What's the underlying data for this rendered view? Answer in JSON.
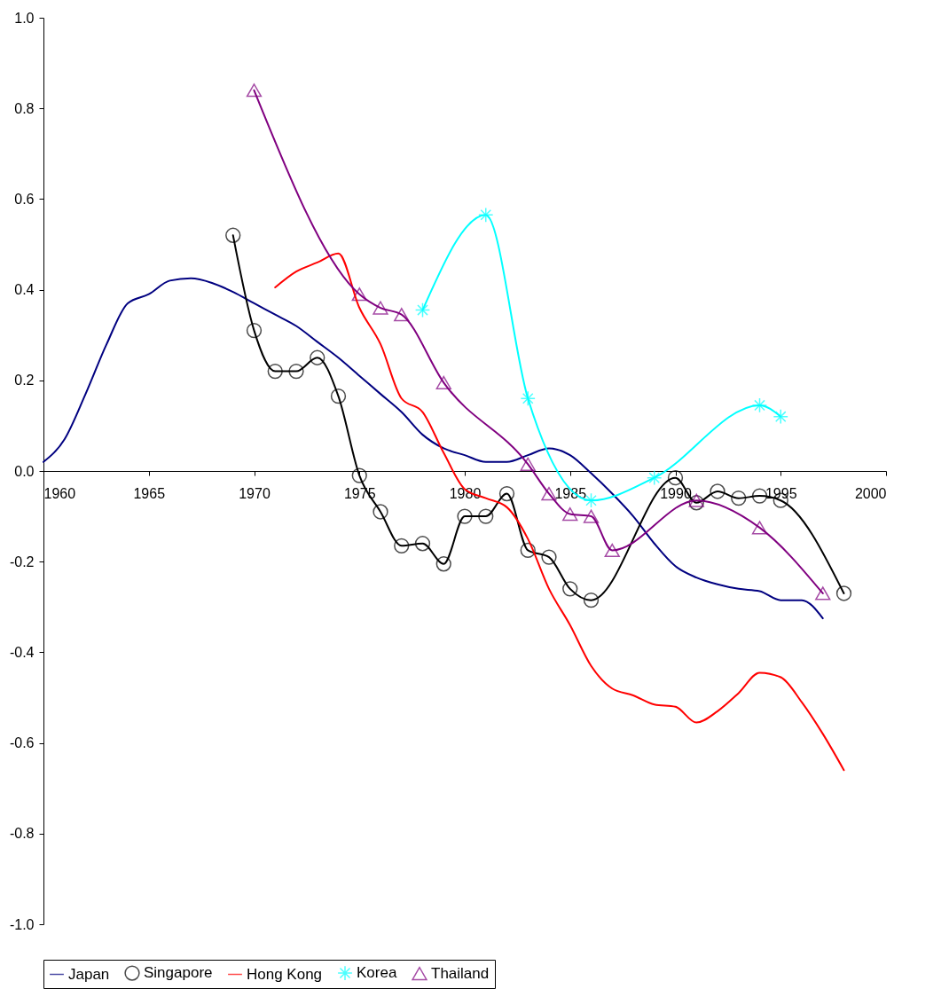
{
  "chart_data": {
    "type": "line",
    "xlim": [
      1960,
      2000
    ],
    "xticks": [
      1960,
      1965,
      1970,
      1975,
      1980,
      1985,
      1990,
      1995,
      2000
    ],
    "ylim": [
      -1,
      1
    ],
    "yticks": [
      {
        "value": -1,
        "label": "-1.0"
      },
      {
        "value": -0.8,
        "label": "-0.8"
      },
      {
        "value": -0.6,
        "label": "-0.6"
      },
      {
        "value": -0.4,
        "label": "-0.4"
      },
      {
        "value": -0.2,
        "label": "-0.2"
      },
      {
        "value": 0,
        "label": "0.0"
      },
      {
        "value": 0.2,
        "label": "0.2"
      },
      {
        "value": 0.4,
        "label": "0.4"
      },
      {
        "value": 0.6,
        "label": "0.6"
      },
      {
        "value": 0.8,
        "label": "0.8"
      },
      {
        "value": 1,
        "label": "1.0"
      }
    ],
    "grid": false,
    "legend": "bottom",
    "series": [
      {
        "name": "Japan",
        "color": "#000080",
        "marker": "none",
        "x": [
          1960,
          1961,
          1962,
          1963,
          1964,
          1965,
          1966,
          1967,
          1968,
          1969,
          1970,
          1971,
          1972,
          1973,
          1974,
          1975,
          1976,
          1977,
          1978,
          1979,
          1980,
          1981,
          1982,
          1983,
          1984,
          1985,
          1986,
          1987,
          1988,
          1989,
          1990,
          1991,
          1992,
          1993,
          1994,
          1995,
          1996,
          1997
        ],
        "values": [
          0.02,
          0.07,
          0.17,
          0.28,
          0.37,
          0.39,
          0.42,
          0.425,
          0.415,
          0.395,
          0.37,
          0.345,
          0.32,
          0.285,
          0.25,
          0.21,
          0.17,
          0.13,
          0.08,
          0.05,
          0.035,
          0.02,
          0.02,
          0.035,
          0.05,
          0.035,
          -0.005,
          -0.05,
          -0.1,
          -0.16,
          -0.21,
          -0.235,
          -0.25,
          -0.26,
          -0.265,
          -0.285,
          -0.285,
          -0.325
        ]
      },
      {
        "name": "Singapore",
        "color": "#000000",
        "marker": "circle",
        "x": [
          1969,
          1970,
          1971,
          1972,
          1973,
          1974,
          1975,
          1976,
          1977,
          1978,
          1979,
          1980,
          1981,
          1982,
          1983,
          1984,
          1985,
          1986,
          1990,
          1991,
          1992,
          1993,
          1994,
          1995,
          1998
        ],
        "values": [
          0.52,
          0.31,
          0.22,
          0.22,
          0.25,
          0.165,
          -0.01,
          -0.09,
          -0.165,
          -0.16,
          -0.205,
          -0.1,
          -0.1,
          -0.05,
          -0.175,
          -0.19,
          -0.26,
          -0.285,
          -0.015,
          -0.07,
          -0.045,
          -0.06,
          -0.055,
          -0.065,
          -0.27
        ]
      },
      {
        "name": "Hong Kong",
        "color": "#ff0000",
        "marker": "none",
        "x": [
          1971,
          1972,
          1973,
          1974,
          1975,
          1976,
          1977,
          1978,
          1979,
          1980,
          1981,
          1982,
          1983,
          1984,
          1985,
          1986,
          1987,
          1988,
          1989,
          1990,
          1991,
          1992,
          1993,
          1994,
          1995,
          1996,
          1997,
          1998
        ],
        "values": [
          0.405,
          0.44,
          0.46,
          0.48,
          0.36,
          0.28,
          0.16,
          0.13,
          0.04,
          -0.04,
          -0.06,
          -0.08,
          -0.15,
          -0.26,
          -0.34,
          -0.43,
          -0.48,
          -0.495,
          -0.515,
          -0.52,
          -0.555,
          -0.53,
          -0.49,
          -0.445,
          -0.455,
          -0.51,
          -0.58,
          -0.66
        ]
      },
      {
        "name": "Korea",
        "color": "#00ffff",
        "marker": "cross",
        "x": [
          1978,
          1981,
          1983,
          1986,
          1989,
          1994,
          1995
        ],
        "values": [
          0.355,
          0.565,
          0.16,
          -0.065,
          -0.015,
          0.145,
          0.12
        ]
      },
      {
        "name": "Thailand",
        "color": "#800080",
        "marker": "triangle",
        "x": [
          1970,
          1975,
          1976,
          1977,
          1979,
          1983,
          1984,
          1985,
          1986,
          1987,
          1991,
          1994,
          1997
        ],
        "values": [
          0.84,
          0.39,
          0.36,
          0.345,
          0.195,
          0.015,
          -0.05,
          -0.095,
          -0.1,
          -0.175,
          -0.065,
          -0.125,
          -0.27
        ]
      }
    ]
  }
}
